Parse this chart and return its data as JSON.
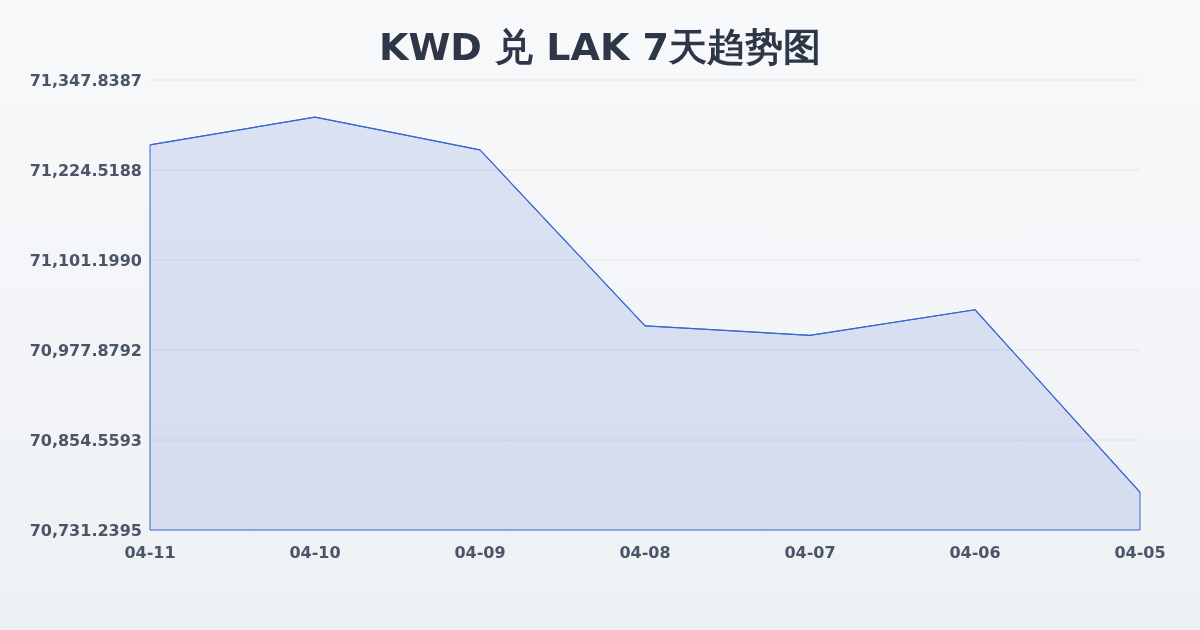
{
  "chart_data": {
    "type": "area",
    "title": "KWD 兑 LAK 7天趋势图",
    "categories": [
      "04-11",
      "04-10",
      "04-09",
      "04-08",
      "04-07",
      "04-06",
      "04-05"
    ],
    "series": [
      {
        "color": "#3a66d0",
        "values": [
          71259,
          71297,
          71252,
          71011,
          70998,
          71033,
          70783
        ]
      }
    ],
    "ylim": [
      70731.2395,
      71347.8387
    ],
    "yticks": [
      {
        "value": 70731.2395,
        "label": "70,731.2395"
      },
      {
        "value": 70854.5593,
        "label": "70,854.5593"
      },
      {
        "value": 70977.8792,
        "label": "70,977.8792"
      },
      {
        "value": 71101.199,
        "label": "71,101.1990"
      },
      {
        "value": 71224.5188,
        "label": "71,224.5188"
      },
      {
        "value": 71347.8387,
        "label": "71,347.8387"
      }
    ],
    "grid": "y",
    "marker": "none",
    "line_style": "solid"
  }
}
